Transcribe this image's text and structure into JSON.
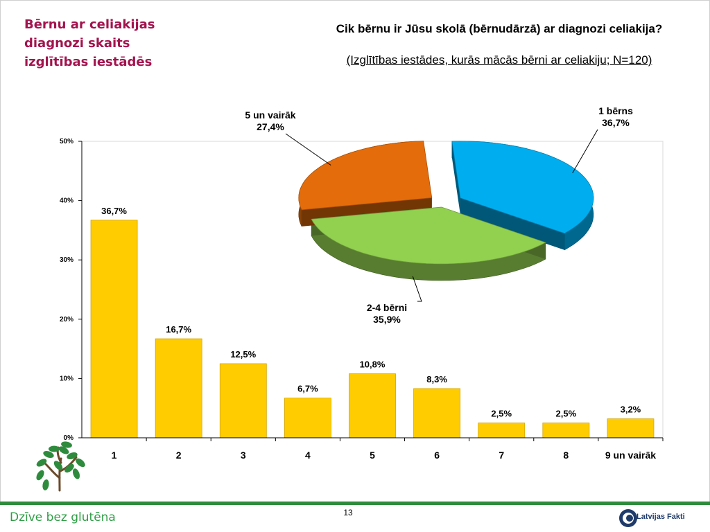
{
  "slide": {
    "title": "Bērnu ar celiakijas diagnozi skaits izglītības iestādēs",
    "question": "Cik bērnu ir Jūsu skolā (bērnudārzā) ar diagnozi celiakija?",
    "subtitle": "(Izglītības iestādes, kurās mācās bērni ar celiakiju; N=120)",
    "page_number": "13",
    "brand": "Dzīve bez glutēna",
    "footer_logo": "Latvijas Fakti"
  },
  "colors": {
    "bar": "#FFCC00",
    "bar_edge": "#D4A500",
    "title": "#A3134E",
    "slice_1": "#00AEEF",
    "slice_2": "#92D050",
    "slice_3": "#E46C0A",
    "green": "#2E8B3D"
  },
  "chart_data": [
    {
      "type": "bar",
      "categories": [
        "1",
        "2",
        "3",
        "4",
        "5",
        "6",
        "7",
        "8",
        "9 un vairāk"
      ],
      "values": [
        36.7,
        16.7,
        12.5,
        6.7,
        10.8,
        8.3,
        2.5,
        2.5,
        3.2
      ],
      "value_labels": [
        "36,7%",
        "16,7%",
        "12,5%",
        "6,7%",
        "10,8%",
        "8,3%",
        "2,5%",
        "2,5%",
        "3,2%"
      ],
      "y_ticks": [
        "0%",
        "10%",
        "20%",
        "30%",
        "40%",
        "50%"
      ],
      "ylim": [
        0,
        50
      ],
      "grid": false
    },
    {
      "type": "pie",
      "slices": [
        {
          "label": "1 bērns",
          "value": 36.7,
          "value_label": "36,7%"
        },
        {
          "label": "2-4 bērni",
          "value": 35.9,
          "value_label": "35,9%"
        },
        {
          "label": "5 un vairāk",
          "value": 27.4,
          "value_label": "27,4%"
        }
      ]
    }
  ]
}
